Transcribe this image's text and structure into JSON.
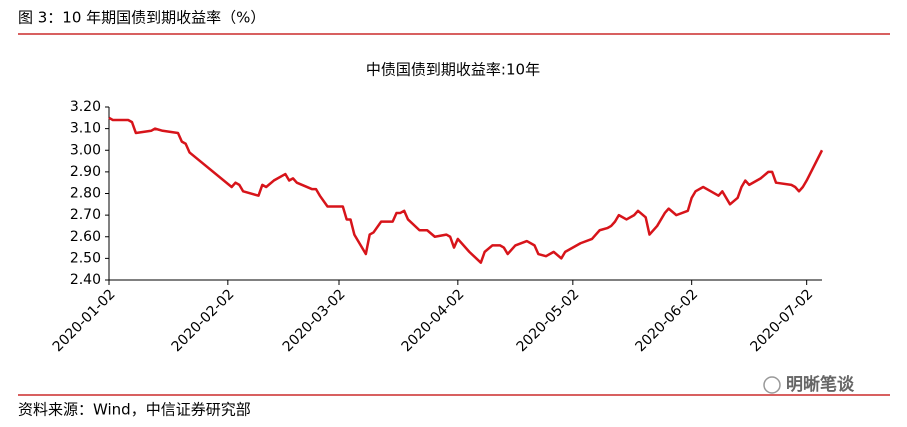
{
  "header": {
    "title": "图 3：10 年期国债到期收益率（%）"
  },
  "chart_data": {
    "type": "line",
    "title": "中债国债到期收益率:10年",
    "x": [
      "2020-01-02",
      "2020-01-03",
      "2020-01-07",
      "2020-01-08",
      "2020-01-09",
      "2020-01-13",
      "2020-01-14",
      "2020-01-16",
      "2020-01-20",
      "2020-01-21",
      "2020-01-22",
      "2020-01-23",
      "2020-02-03",
      "2020-02-04",
      "2020-02-05",
      "2020-02-06",
      "2020-02-10",
      "2020-02-11",
      "2020-02-12",
      "2020-02-14",
      "2020-02-17",
      "2020-02-18",
      "2020-02-19",
      "2020-02-20",
      "2020-02-24",
      "2020-02-25",
      "2020-02-26",
      "2020-02-28",
      "2020-03-03",
      "2020-03-04",
      "2020-03-05",
      "2020-03-06",
      "2020-03-09",
      "2020-03-10",
      "2020-03-11",
      "2020-03-13",
      "2020-03-16",
      "2020-03-17",
      "2020-03-18",
      "2020-03-19",
      "2020-03-20",
      "2020-03-23",
      "2020-03-25",
      "2020-03-27",
      "2020-03-30",
      "2020-03-31",
      "2020-04-01",
      "2020-04-02",
      "2020-04-05",
      "2020-04-08",
      "2020-04-09",
      "2020-04-11",
      "2020-04-13",
      "2020-04-14",
      "2020-04-15",
      "2020-04-17",
      "2020-04-20",
      "2020-04-22",
      "2020-04-23",
      "2020-04-25",
      "2020-04-27",
      "2020-04-29",
      "2020-04-30",
      "2020-05-04",
      "2020-05-07",
      "2020-05-08",
      "2020-05-09",
      "2020-05-11",
      "2020-05-12",
      "2020-05-13",
      "2020-05-14",
      "2020-05-16",
      "2020-05-18",
      "2020-05-19",
      "2020-05-21",
      "2020-05-22",
      "2020-05-24",
      "2020-05-26",
      "2020-05-27",
      "2020-05-29",
      "2020-06-01",
      "2020-06-02",
      "2020-06-03",
      "2020-06-05",
      "2020-06-07",
      "2020-06-09",
      "2020-06-10",
      "2020-06-12",
      "2020-06-14",
      "2020-06-15",
      "2020-06-16",
      "2020-06-17",
      "2020-06-20",
      "2020-06-22",
      "2020-06-23",
      "2020-06-24",
      "2020-06-28",
      "2020-06-29",
      "2020-06-30",
      "2020-07-01",
      "2020-07-02",
      "2020-07-06"
    ],
    "series": [
      {
        "name": "中债国债到期收益率:10年",
        "color": "#d7141a",
        "values": [
          3.15,
          3.14,
          3.14,
          3.13,
          3.08,
          3.09,
          3.1,
          3.09,
          3.08,
          3.04,
          3.03,
          2.99,
          2.83,
          2.85,
          2.84,
          2.81,
          2.79,
          2.84,
          2.83,
          2.86,
          2.89,
          2.86,
          2.87,
          2.85,
          2.82,
          2.82,
          2.79,
          2.74,
          2.74,
          2.68,
          2.68,
          2.61,
          2.52,
          2.61,
          2.62,
          2.67,
          2.67,
          2.71,
          2.71,
          2.72,
          2.68,
          2.63,
          2.63,
          2.6,
          2.61,
          2.6,
          2.55,
          2.59,
          2.53,
          2.48,
          2.53,
          2.56,
          2.56,
          2.55,
          2.52,
          2.56,
          2.58,
          2.56,
          2.52,
          2.51,
          2.53,
          2.5,
          2.53,
          2.57,
          2.59,
          2.61,
          2.63,
          2.64,
          2.65,
          2.67,
          2.7,
          2.68,
          2.7,
          2.72,
          2.69,
          2.61,
          2.65,
          2.71,
          2.73,
          2.7,
          2.72,
          2.78,
          2.81,
          2.83,
          2.81,
          2.79,
          2.81,
          2.75,
          2.78,
          2.83,
          2.86,
          2.84,
          2.87,
          2.9,
          2.9,
          2.85,
          2.84,
          2.83,
          2.81,
          2.83,
          2.86,
          3.0
        ]
      }
    ],
    "xlim": [
      "2020-01-02",
      "2020-07-06"
    ],
    "xticks": [
      "2020-01-02",
      "2020-02-02",
      "2020-03-02",
      "2020-04-02",
      "2020-05-02",
      "2020-06-02",
      "2020-07-02"
    ],
    "ylim": [
      2.4,
      3.2
    ],
    "yticks": [
      {
        "value": 2.4,
        "label": "2.40"
      },
      {
        "value": 2.5,
        "label": "2.50"
      },
      {
        "value": 2.6,
        "label": "2.60"
      },
      {
        "value": 2.7,
        "label": "2.70"
      },
      {
        "value": 2.8,
        "label": "2.80"
      },
      {
        "value": 2.9,
        "label": "2.90"
      },
      {
        "value": 3.0,
        "label": "3.00"
      },
      {
        "value": 3.1,
        "label": "3.10"
      },
      {
        "value": 3.2,
        "label": "3.20"
      }
    ],
    "grid": false
  },
  "footer": {
    "source": "资料来源：Wind，中信证券研究部",
    "watermark": "明晰笔谈"
  }
}
